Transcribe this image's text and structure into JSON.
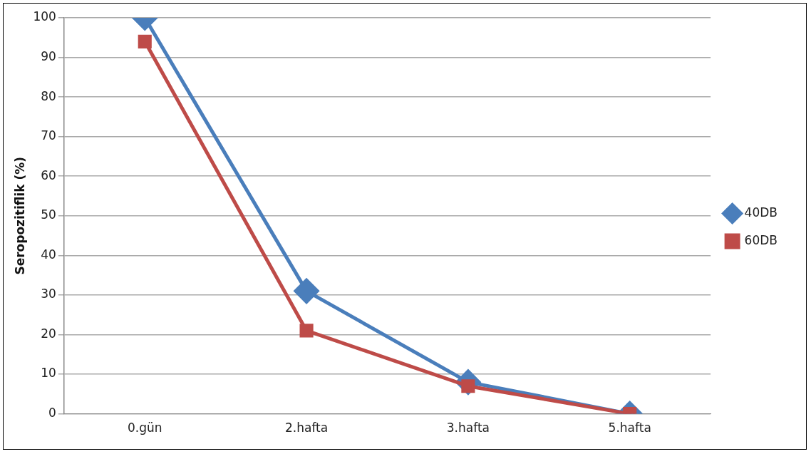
{
  "chart_data": {
    "type": "line",
    "ylabel": "Seropozitiflik (%)",
    "categories": [
      "0.gün",
      "2.hafta",
      "3.hafta",
      "5.hafta"
    ],
    "series": [
      {
        "name": "40DB",
        "color": "#4a7ebb",
        "values": [
          100,
          31,
          8,
          0
        ],
        "marker": "diamond"
      },
      {
        "name": "60DB",
        "color": "#be4b48",
        "values": [
          94,
          21,
          7,
          0
        ],
        "marker": "square"
      }
    ],
    "ylim": [
      0,
      100
    ],
    "yticks": [
      0,
      10,
      20,
      30,
      40,
      50,
      60,
      70,
      80,
      90,
      100
    ],
    "grid": "y",
    "legend": "right"
  }
}
